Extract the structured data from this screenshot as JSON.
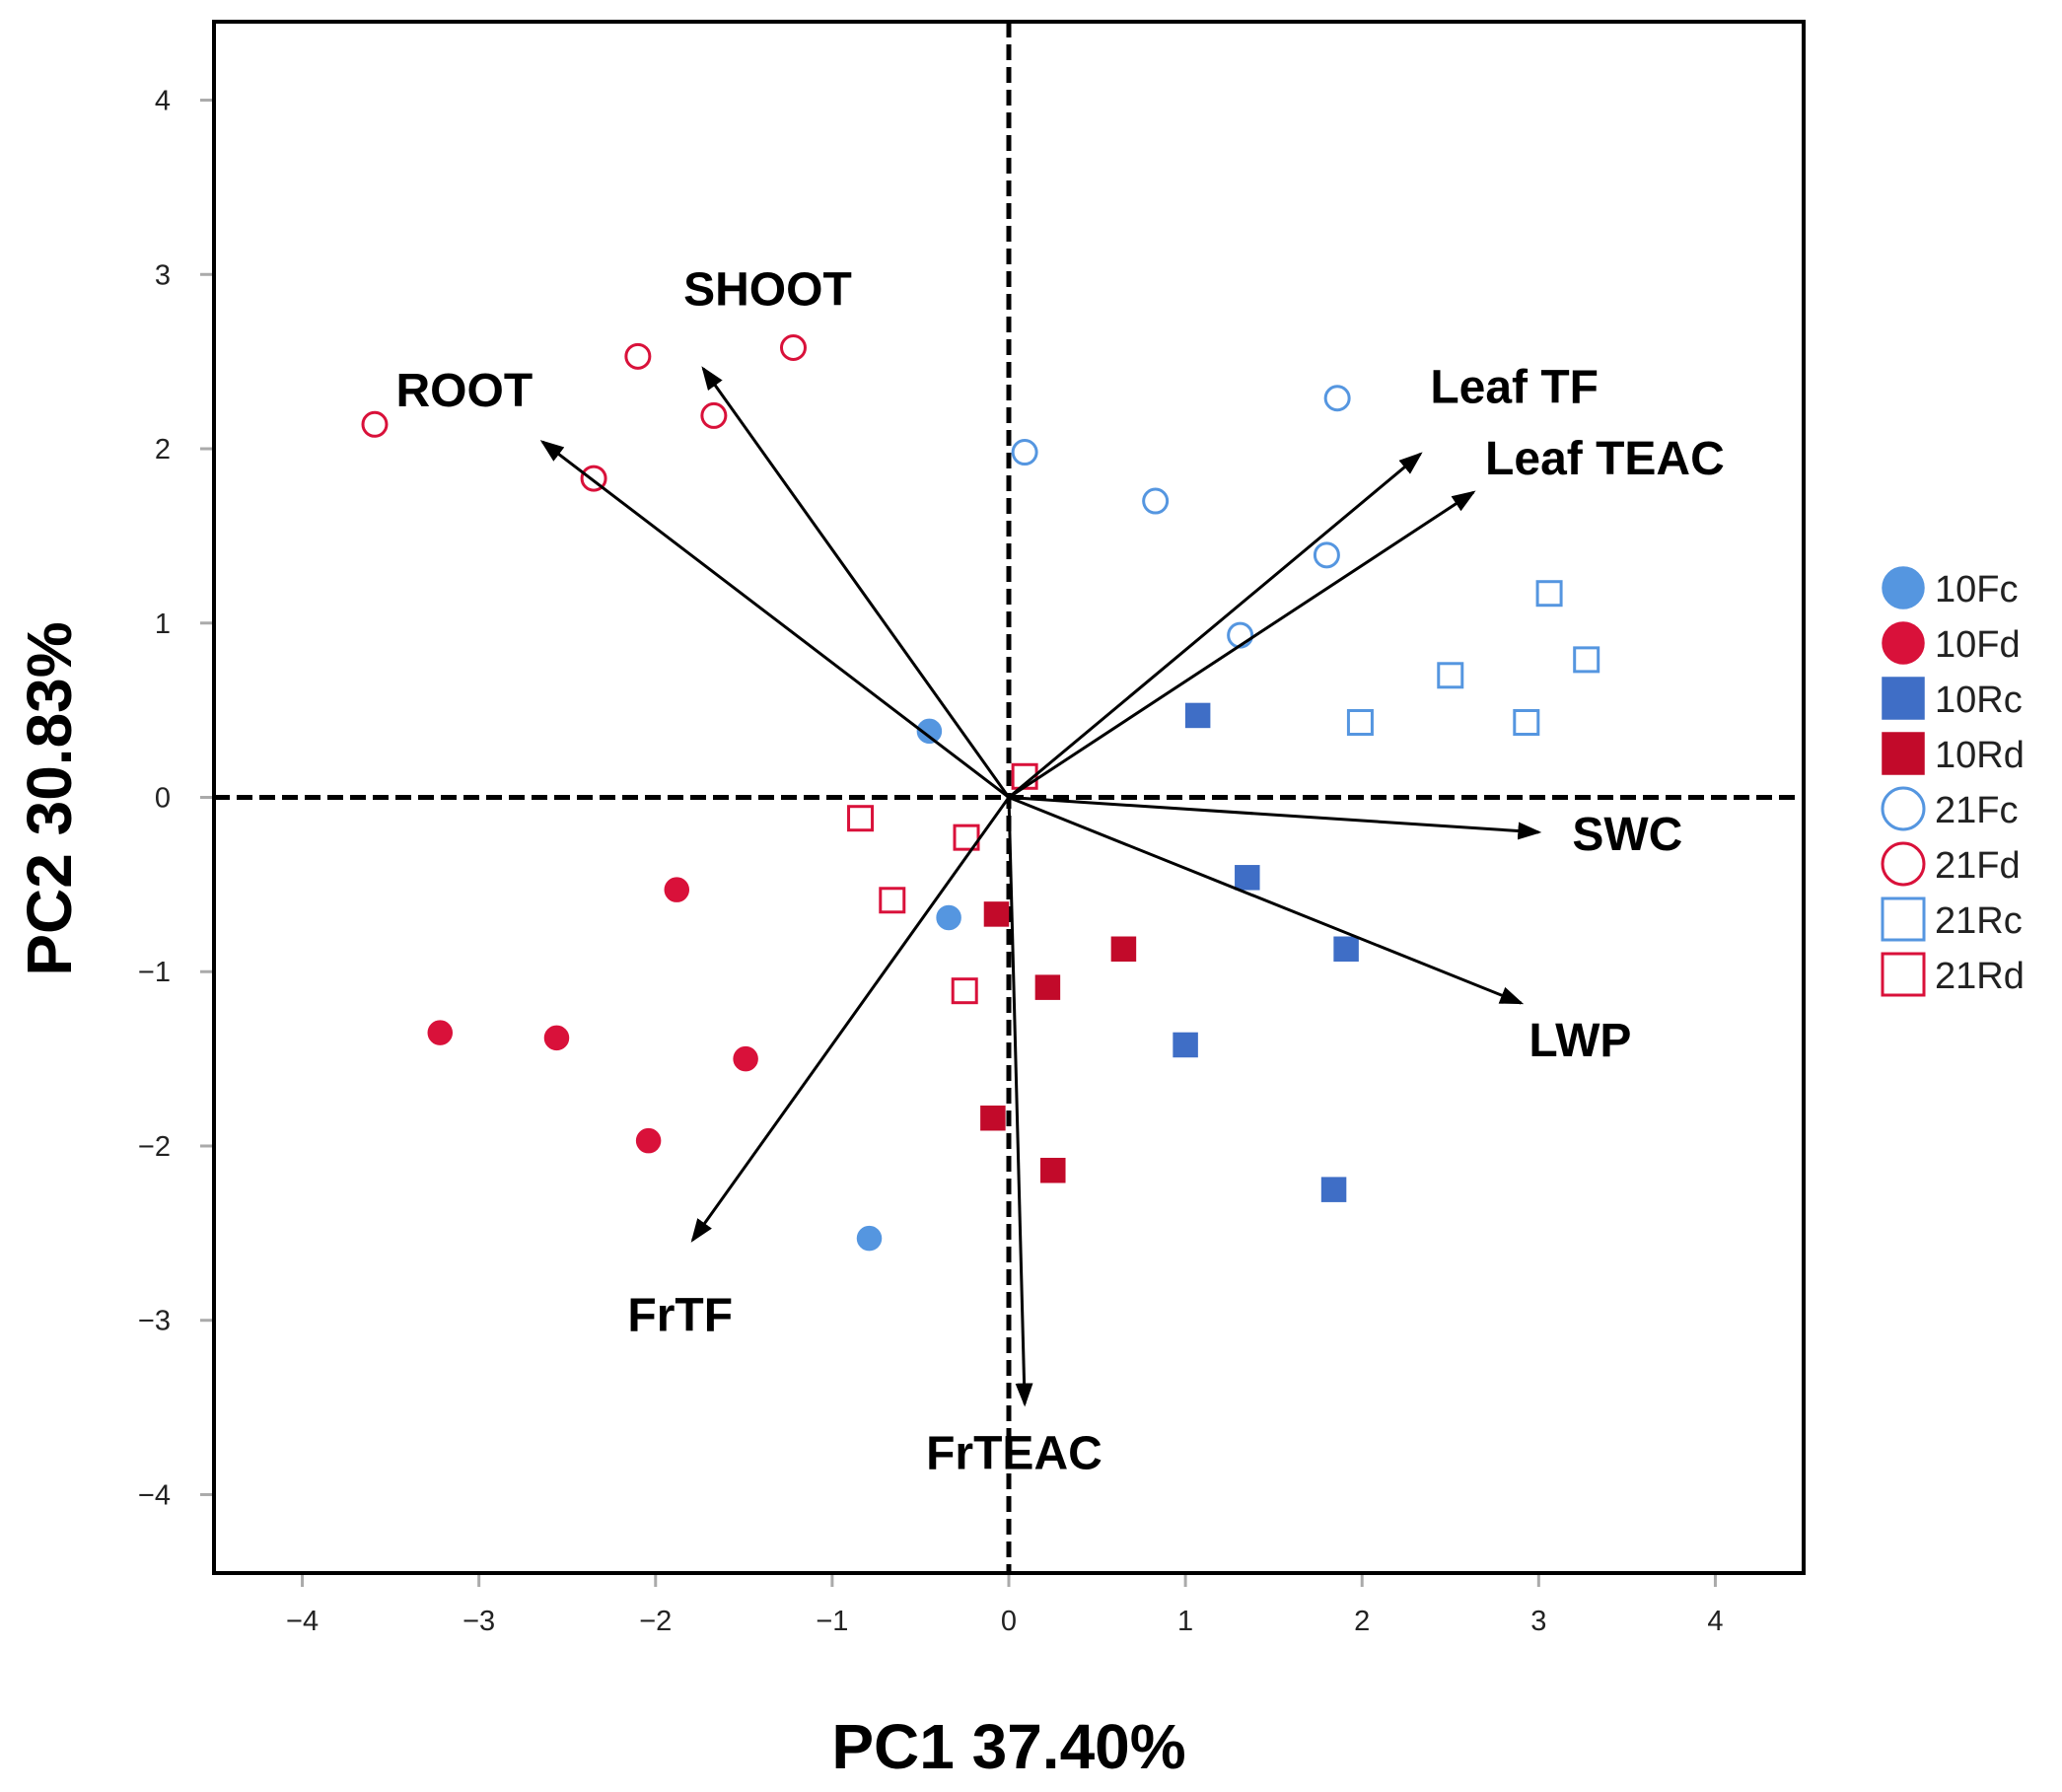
{
  "chart_data": {
    "type": "scatter",
    "subtype": "PCA biplot",
    "xlabel": "PC1 37.40%",
    "ylabel": "PC2 30.83%",
    "xlim": [
      -4.5,
      4.5
    ],
    "ylim": [
      -4.45,
      4.45
    ],
    "xticks": [
      -4,
      -3,
      -2,
      -1,
      0,
      1,
      2,
      3,
      4
    ],
    "yticks": [
      -4,
      -3,
      -2,
      -1,
      0,
      1,
      2,
      3,
      4
    ],
    "x_tick_labels": [
      "−4",
      "−3",
      "−2",
      "−1",
      "0",
      "1",
      "2",
      "3",
      "4"
    ],
    "y_tick_labels": [
      "−4",
      "−3",
      "−2",
      "−1",
      "0",
      "1",
      "2",
      "3",
      "4"
    ],
    "reference_lines": "dashed lines at x = 0 and y = 0",
    "legend_position": "right",
    "series": [
      {
        "name": "10Fc",
        "marker": "filled-circle",
        "color": "#5596e0",
        "points": [
          [
            -0.45,
            0.38
          ],
          [
            -0.34,
            -0.69
          ],
          [
            -0.79,
            -2.53
          ]
        ]
      },
      {
        "name": "10Fd",
        "marker": "filled-circle",
        "color": "#d9113a",
        "points": [
          [
            -1.88,
            -0.53
          ],
          [
            -3.22,
            -1.35
          ],
          [
            -2.56,
            -1.38
          ],
          [
            -1.49,
            -1.5
          ],
          [
            -2.04,
            -1.97
          ]
        ]
      },
      {
        "name": "10Rc",
        "marker": "filled-square",
        "color": "#3f6ec6",
        "points": [
          [
            1.07,
            0.47
          ],
          [
            1.35,
            -0.46
          ],
          [
            1.91,
            -0.87
          ],
          [
            1.0,
            -1.42
          ],
          [
            1.84,
            -2.25
          ]
        ]
      },
      {
        "name": "10Rd",
        "marker": "filled-square",
        "color": "#c20a2a",
        "points": [
          [
            -0.07,
            -0.67
          ],
          [
            0.22,
            -1.09
          ],
          [
            0.65,
            -0.87
          ],
          [
            -0.09,
            -1.84
          ],
          [
            0.25,
            -2.14
          ]
        ]
      },
      {
        "name": "21Fc",
        "marker": "open-circle",
        "color": "#5596e0",
        "points": [
          [
            0.09,
            1.98
          ],
          [
            0.83,
            1.7
          ],
          [
            1.86,
            2.29
          ],
          [
            1.8,
            1.39
          ],
          [
            1.31,
            0.93
          ]
        ]
      },
      {
        "name": "21Fd",
        "marker": "open-circle",
        "color": "#d9113a",
        "points": [
          [
            -3.59,
            2.14
          ],
          [
            -2.1,
            2.53
          ],
          [
            -1.22,
            2.58
          ],
          [
            -1.67,
            2.19
          ],
          [
            -2.35,
            1.83
          ]
        ]
      },
      {
        "name": "21Rc",
        "marker": "open-square",
        "color": "#5596e0",
        "points": [
          [
            3.06,
            1.17
          ],
          [
            3.27,
            0.79
          ],
          [
            2.5,
            0.7
          ],
          [
            1.99,
            0.43
          ],
          [
            2.93,
            0.43
          ]
        ]
      },
      {
        "name": "21Rd",
        "marker": "open-square",
        "color": "#d9113a",
        "points": [
          [
            0.09,
            0.12
          ],
          [
            -0.84,
            -0.12
          ],
          [
            -0.24,
            -0.23
          ],
          [
            -0.66,
            -0.59
          ],
          [
            -0.25,
            -1.11
          ]
        ]
      }
    ],
    "loadings": [
      {
        "name": "ROOT",
        "x": -2.64,
        "y": 2.04
      },
      {
        "name": "SHOOT",
        "x": -1.73,
        "y": 2.46
      },
      {
        "name": "Leaf TF",
        "x": 2.33,
        "y": 1.97
      },
      {
        "name": "Leaf TEAC",
        "x": 2.63,
        "y": 1.75
      },
      {
        "name": "SWC",
        "x": 3.0,
        "y": -0.2
      },
      {
        "name": "LWP",
        "x": 2.9,
        "y": -1.18
      },
      {
        "name": "FrTF",
        "x": -1.79,
        "y": -2.54
      },
      {
        "name": "FrTEAC",
        "x": 0.09,
        "y": -3.48
      }
    ]
  }
}
